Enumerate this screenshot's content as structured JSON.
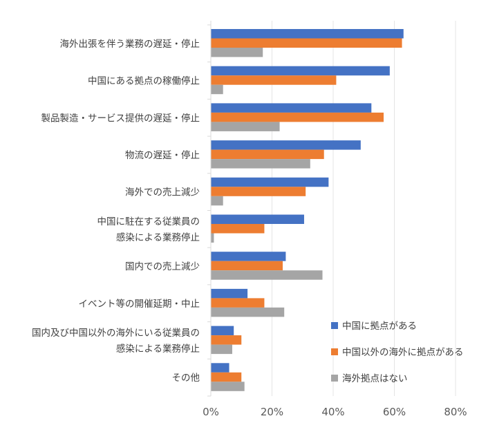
{
  "chart_data": {
    "type": "bar",
    "orientation": "horizontal",
    "categories": [
      [
        "海外出張を伴う業務の遅延・停止"
      ],
      [
        "中国にある拠点の稼働停止"
      ],
      [
        "製品製造・サービス提供の遅延・停止"
      ],
      [
        "物流の遅延・停止"
      ],
      [
        "海外での売上減少"
      ],
      [
        "中国に駐在する従業員の",
        "感染による業務停止"
      ],
      [
        "国内での売上減少"
      ],
      [
        "イベント等の開催延期・中止"
      ],
      [
        "国内及び中国以外の海外にいる従業員の",
        "感染による業務停止"
      ],
      [
        "その他"
      ]
    ],
    "series": [
      {
        "name": "中国に拠点がある",
        "color": "#4472c4",
        "values": [
          63,
          58.5,
          52.5,
          49,
          38.5,
          30.5,
          24.5,
          12,
          7.5,
          6
        ]
      },
      {
        "name": "中国以外の海外に拠点がある",
        "color": "#ed7d31",
        "values": [
          62.5,
          41,
          56.5,
          37,
          31,
          17.5,
          23.5,
          17.5,
          10,
          10
        ]
      },
      {
        "name": "海外拠点はない",
        "color": "#a5a5a5",
        "values": [
          17,
          4,
          22.5,
          32.5,
          4,
          1,
          36.5,
          24,
          7,
          11
        ]
      }
    ],
    "xlim": [
      0,
      80
    ],
    "xticks": [
      "0%",
      "20%",
      "40%",
      "60%",
      "80%"
    ],
    "grid": true,
    "legend_position": "bottom-right"
  }
}
